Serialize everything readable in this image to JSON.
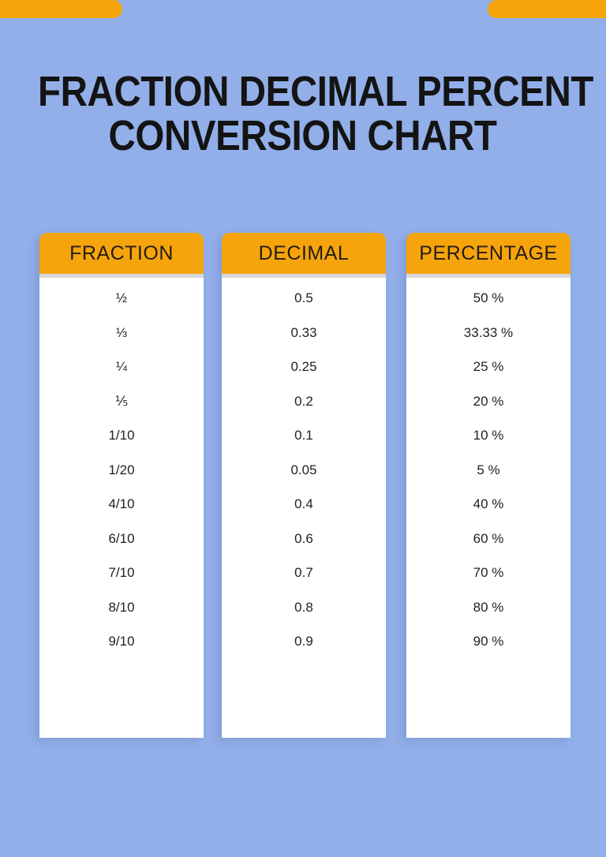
{
  "title": {
    "line1": "FRACTION DECIMAL PERCENT",
    "line2": "CONVERSION CHART"
  },
  "colors": {
    "background": "#92AFE9",
    "accent_orange": "#F6A40B",
    "panel_white": "#FFFFFF",
    "divider_gray": "#D6D8DB",
    "title_text": "#141414",
    "cell_text": "#222222"
  },
  "chart_data": {
    "type": "table",
    "title": "FRACTION DECIMAL PERCENT CONVERSION CHART",
    "column_headers": [
      "FRACTION",
      "DECIMAL",
      "PERCENTAGE"
    ],
    "columns": [
      {
        "header": "FRACTION",
        "rows": [
          "½",
          "⅓",
          "¼",
          "⅕",
          "1/10",
          "1/20",
          "4/10",
          "6/10",
          "7/10",
          "8/10",
          "9/10"
        ]
      },
      {
        "header": "DECIMAL",
        "rows": [
          "0.5",
          "0.33",
          "0.25",
          "0.2",
          "0.1",
          "0.05",
          "0.4",
          "0.6",
          "0.7",
          "0.8",
          "0.9"
        ]
      },
      {
        "header": "PERCENTAGE",
        "rows": [
          "50 %",
          "33.33 %",
          "25 %",
          "20 %",
          "10 %",
          "5 %",
          "40 %",
          "60 %",
          "70 %",
          "80 %",
          "90 %"
        ]
      }
    ]
  }
}
